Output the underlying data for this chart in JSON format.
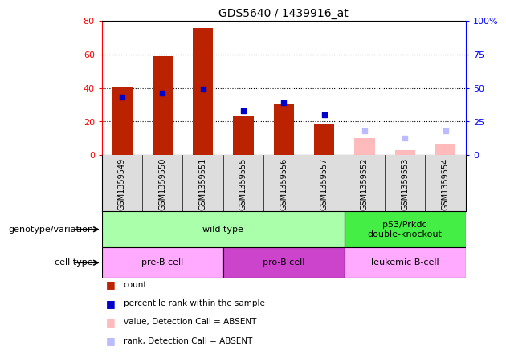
{
  "title": "GDS5640 / 1439916_at",
  "samples": [
    "GSM1359549",
    "GSM1359550",
    "GSM1359551",
    "GSM1359555",
    "GSM1359556",
    "GSM1359557",
    "GSM1359552",
    "GSM1359553",
    "GSM1359554"
  ],
  "count_values": [
    41,
    59,
    76,
    23,
    31,
    19,
    null,
    null,
    null
  ],
  "rank_values": [
    43,
    46,
    49,
    33,
    39,
    30,
    null,
    null,
    null
  ],
  "count_absent": [
    null,
    null,
    null,
    null,
    null,
    null,
    10,
    3,
    7
  ],
  "rank_absent": [
    null,
    null,
    null,
    null,
    null,
    null,
    18,
    13,
    18
  ],
  "ylim_left": [
    0,
    80
  ],
  "ylim_right": [
    0,
    100
  ],
  "yticks_left": [
    0,
    20,
    40,
    60,
    80
  ],
  "yticks_right": [
    0,
    25,
    50,
    75,
    100
  ],
  "ytick_labels_right": [
    "0",
    "25",
    "50",
    "75",
    "100%"
  ],
  "bar_color": "#bb2200",
  "rank_color": "#0000cc",
  "absent_bar_color": "#ffbbbb",
  "absent_rank_color": "#bbbbff",
  "genotype_groups": [
    {
      "label": "wild type",
      "start": 0,
      "end": 6,
      "color": "#aaffaa"
    },
    {
      "label": "p53/Prkdc\ndouble-knockout",
      "start": 6,
      "end": 9,
      "color": "#44ee44"
    }
  ],
  "celltype_groups": [
    {
      "label": "pre-B cell",
      "start": 0,
      "end": 3,
      "color": "#ffaaff"
    },
    {
      "label": "pro-B cell",
      "start": 3,
      "end": 6,
      "color": "#cc44cc"
    },
    {
      "label": "leukemic B-cell",
      "start": 6,
      "end": 9,
      "color": "#ffaaff"
    }
  ],
  "legend_items": [
    {
      "color": "#bb2200",
      "label": "count"
    },
    {
      "color": "#0000cc",
      "label": "percentile rank within the sample"
    },
    {
      "color": "#ffbbbb",
      "label": "value, Detection Call = ABSENT"
    },
    {
      "color": "#bbbbff",
      "label": "rank, Detection Call = ABSENT"
    }
  ]
}
